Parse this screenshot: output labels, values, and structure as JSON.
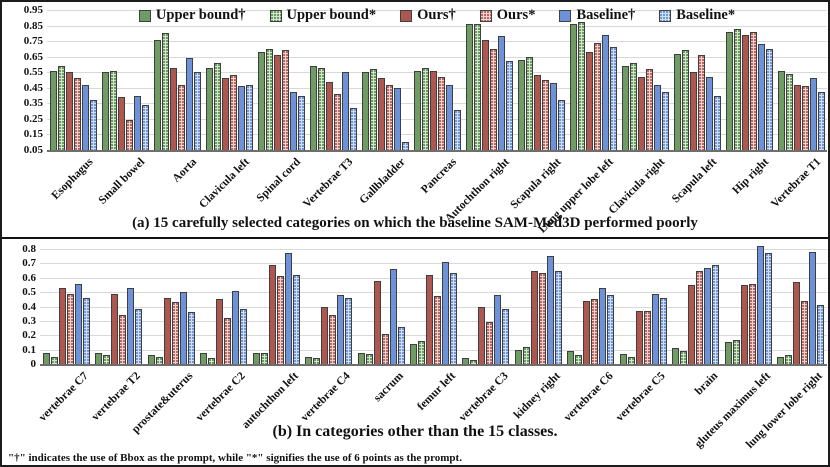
{
  "captions": {
    "panel_a": "(a) 15 carefully selected categories on which the baseline SAM-Med3D performed poorly",
    "panel_b": "(b) In categories other than the 15 classes.",
    "footnote": "\"†\" indicates the use of Bbox as the prompt, while \"*\" signifies the use of 6 points as the prompt."
  },
  "legend": [
    {
      "label": "Upper bound†",
      "color": "#6f9c62",
      "pattern": false
    },
    {
      "label": "Upper bound*",
      "color": "#d3e8cb",
      "dot_color": "#63975a",
      "pattern": true
    },
    {
      "label": "Ours†",
      "color": "#ad574f",
      "pattern": false
    },
    {
      "label": "Ours*",
      "color": "#f2d0cd",
      "dot_color": "#b4625a",
      "pattern": true
    },
    {
      "label": "Baseline†",
      "color": "#6d92d9",
      "pattern": false
    },
    {
      "label": "Baseline*",
      "color": "#cfdff3",
      "dot_color": "#6d92d9",
      "pattern": true
    }
  ],
  "colors": {
    "gridline": "#d9d9d9",
    "axis": "#6e6e6e",
    "bar_border": "#3f3f3f"
  },
  "chart_data": [
    {
      "type": "bar",
      "title": "",
      "xlabel": "",
      "ylabel": "",
      "ylim": [
        0.05,
        0.95
      ],
      "yticks": [
        "0.95",
        "0.85",
        "0.75",
        "0.65",
        "0.55",
        "0.45",
        "0.35",
        "0.25",
        "0.15",
        "0.05"
      ],
      "grid": true,
      "legend_position": "top-center",
      "categories": [
        "Esophagus",
        "Small bowel",
        "Aorta",
        "Clavicula left",
        "Spinal cord",
        "Vertebrae T3",
        "Gallbladder",
        "Pancreas",
        "Autochthon right",
        "Scapula right",
        "Lung upper lobe left",
        "Clavicula right",
        "Scapula left",
        "Hip right",
        "Vertebrae T1"
      ],
      "series": [
        {
          "name": "Upper bound†",
          "values": [
            0.56,
            0.55,
            0.76,
            0.58,
            0.68,
            0.59,
            0.55,
            0.56,
            0.86,
            0.63,
            0.86,
            0.59,
            0.67,
            0.81,
            0.56
          ]
        },
        {
          "name": "Upper bound*",
          "values": [
            0.59,
            0.56,
            0.8,
            0.61,
            0.7,
            0.58,
            0.57,
            0.58,
            0.86,
            0.65,
            0.87,
            0.61,
            0.69,
            0.83,
            0.54
          ]
        },
        {
          "name": "Ours†",
          "values": [
            0.55,
            0.39,
            0.58,
            0.51,
            0.66,
            0.49,
            0.51,
            0.56,
            0.76,
            0.53,
            0.68,
            0.52,
            0.55,
            0.79,
            0.47
          ]
        },
        {
          "name": "Ours*",
          "values": [
            0.51,
            0.24,
            0.47,
            0.53,
            0.69,
            0.41,
            0.47,
            0.52,
            0.7,
            0.5,
            0.74,
            0.57,
            0.66,
            0.81,
            0.46
          ]
        },
        {
          "name": "Baseline†",
          "values": [
            0.47,
            0.4,
            0.64,
            0.46,
            0.42,
            0.55,
            0.45,
            0.47,
            0.78,
            0.48,
            0.79,
            0.47,
            0.52,
            0.73,
            0.51
          ]
        },
        {
          "name": "Baseline*",
          "values": [
            0.37,
            0.34,
            0.55,
            0.47,
            0.4,
            0.32,
            0.1,
            0.31,
            0.62,
            0.37,
            0.71,
            0.42,
            0.4,
            0.7,
            0.42
          ]
        }
      ]
    },
    {
      "type": "bar",
      "title": "",
      "xlabel": "",
      "ylabel": "",
      "ylim": [
        0,
        0.8
      ],
      "yticks": [
        "0.8",
        "0.7",
        "0.6",
        "0.5",
        "0.4",
        "0.3",
        "0.2",
        "0.1",
        "0"
      ],
      "grid": true,
      "legend_position": "none",
      "categories": [
        "vertebrae C7",
        "vertebrae T2",
        "prostate&uterus",
        "vertebrae C2",
        "autochthon left",
        "vertebrae C4",
        "sacrum",
        "femur left",
        "vertebrae C3",
        "kidney right",
        "vertebrae C6",
        "vertebrae C5",
        "brain",
        "gluteus maximus left",
        "lung lower lobe right"
      ],
      "series": [
        {
          "name": "Upper bound†",
          "values": [
            0.08,
            0.08,
            0.06,
            0.08,
            0.08,
            0.05,
            0.08,
            0.14,
            0.04,
            0.1,
            0.09,
            0.07,
            0.11,
            0.15,
            0.05
          ]
        },
        {
          "name": "Upper bound*",
          "values": [
            0.05,
            0.06,
            0.05,
            0.04,
            0.08,
            0.04,
            0.07,
            0.16,
            0.03,
            0.12,
            0.06,
            0.05,
            0.09,
            0.17,
            0.06
          ]
        },
        {
          "name": "Ours†",
          "values": [
            0.53,
            0.49,
            0.46,
            0.45,
            0.69,
            0.4,
            0.58,
            0.62,
            0.4,
            0.65,
            0.44,
            0.37,
            0.55,
            0.55,
            0.57
          ]
        },
        {
          "name": "Ours*",
          "values": [
            0.49,
            0.34,
            0.43,
            0.32,
            0.61,
            0.34,
            0.21,
            0.47,
            0.29,
            0.63,
            0.45,
            0.37,
            0.65,
            0.56,
            0.44
          ]
        },
        {
          "name": "Baseline†",
          "values": [
            0.56,
            0.53,
            0.5,
            0.51,
            0.77,
            0.48,
            0.66,
            0.71,
            0.48,
            0.75,
            0.53,
            0.49,
            0.67,
            0.82,
            0.78
          ]
        },
        {
          "name": "Baseline*",
          "values": [
            0.46,
            0.38,
            0.36,
            0.38,
            0.62,
            0.46,
            0.26,
            0.63,
            0.38,
            0.65,
            0.48,
            0.46,
            0.69,
            0.77,
            0.41
          ]
        }
      ]
    }
  ]
}
